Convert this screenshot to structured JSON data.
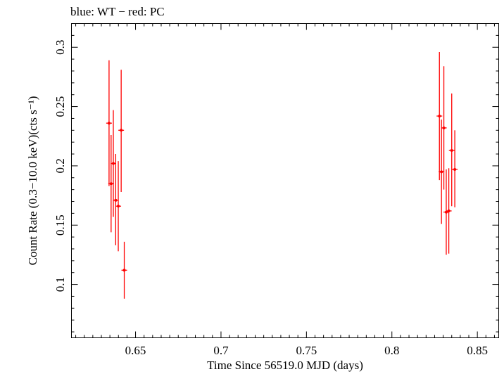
{
  "chart_data": {
    "type": "scatter",
    "title": "blue: WT − red: PC",
    "xlabel": "Time Since 56519.0 MJD (days)",
    "ylabel": "Count Rate (0.3−10.0 keV)(cts s⁻¹)",
    "xlim": [
      0.6125,
      0.8625
    ],
    "ylim": [
      0.055,
      0.32
    ],
    "xticks": [
      0.65,
      0.7,
      0.75,
      0.8,
      0.85
    ],
    "xtick_labels": [
      "0.65",
      "0.7",
      "0.75",
      "0.8",
      "0.85"
    ],
    "yticks": [
      0.1,
      0.15,
      0.2,
      0.25,
      0.3
    ],
    "ytick_labels": [
      "0.1",
      "0.15",
      "0.2",
      "0.25",
      "0.3"
    ],
    "grid": false,
    "series": [
      {
        "name": "PC",
        "color": "#ff0000",
        "points": [
          {
            "x": 0.6345,
            "y": 0.236,
            "ylo": 0.183,
            "yhi": 0.289
          },
          {
            "x": 0.6357,
            "y": 0.185,
            "ylo": 0.144,
            "yhi": 0.226
          },
          {
            "x": 0.637,
            "y": 0.202,
            "ylo": 0.157,
            "yhi": 0.247
          },
          {
            "x": 0.6384,
            "y": 0.171,
            "ylo": 0.133,
            "yhi": 0.21
          },
          {
            "x": 0.6399,
            "y": 0.166,
            "ylo": 0.128,
            "yhi": 0.204
          },
          {
            "x": 0.6416,
            "y": 0.23,
            "ylo": 0.178,
            "yhi": 0.281
          },
          {
            "x": 0.6434,
            "y": 0.112,
            "ylo": 0.088,
            "yhi": 0.136
          },
          {
            "x": 0.8278,
            "y": 0.242,
            "ylo": 0.188,
            "yhi": 0.296
          },
          {
            "x": 0.829,
            "y": 0.195,
            "ylo": 0.151,
            "yhi": 0.239
          },
          {
            "x": 0.8304,
            "y": 0.232,
            "ylo": 0.18,
            "yhi": 0.284
          },
          {
            "x": 0.8318,
            "y": 0.161,
            "ylo": 0.125,
            "yhi": 0.197
          },
          {
            "x": 0.8333,
            "y": 0.162,
            "ylo": 0.126,
            "yhi": 0.198
          },
          {
            "x": 0.835,
            "y": 0.213,
            "ylo": 0.166,
            "yhi": 0.261
          },
          {
            "x": 0.8368,
            "y": 0.197,
            "ylo": 0.165,
            "yhi": 0.23
          }
        ]
      }
    ]
  }
}
